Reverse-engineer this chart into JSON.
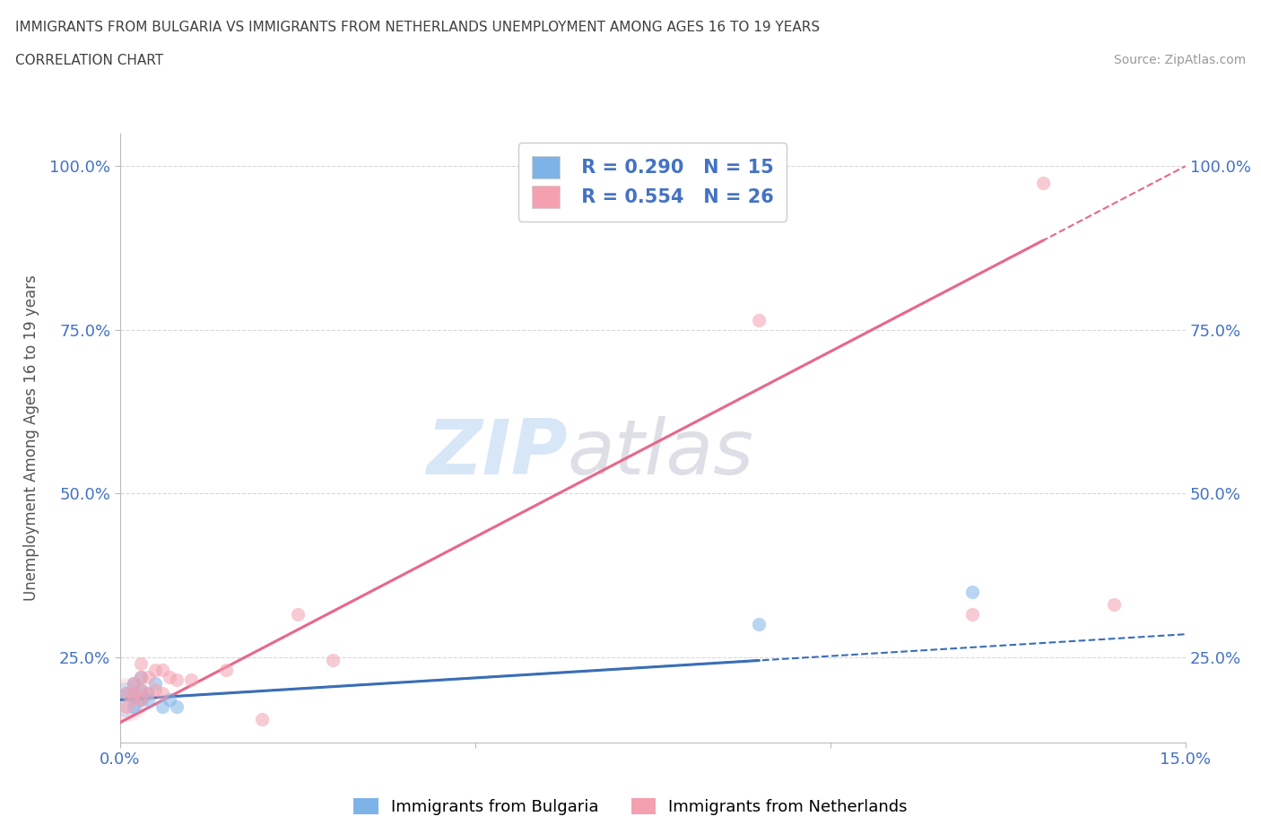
{
  "title_line1": "IMMIGRANTS FROM BULGARIA VS IMMIGRANTS FROM NETHERLANDS UNEMPLOYMENT AMONG AGES 16 TO 19 YEARS",
  "title_line2": "CORRELATION CHART",
  "source_text": "Source: ZipAtlas.com",
  "ylabel": "Unemployment Among Ages 16 to 19 years",
  "xlim": [
    0.0,
    0.15
  ],
  "ylim": [
    0.12,
    1.05
  ],
  "xticks": [
    0.0,
    0.05,
    0.1,
    0.15
  ],
  "xticklabels": [
    "0.0%",
    "",
    "",
    "15.0%"
  ],
  "yticks": [
    0.25,
    0.5,
    0.75,
    1.0
  ],
  "yticklabels": [
    "25.0%",
    "50.0%",
    "75.0%",
    "100.0%"
  ],
  "bulgaria_x": [
    0.001,
    0.002,
    0.002,
    0.002,
    0.003,
    0.003,
    0.003,
    0.004,
    0.004,
    0.005,
    0.006,
    0.007,
    0.008,
    0.09,
    0.12
  ],
  "bulgaria_y": [
    0.195,
    0.175,
    0.19,
    0.21,
    0.185,
    0.2,
    0.22,
    0.195,
    0.185,
    0.21,
    0.175,
    0.185,
    0.175,
    0.3,
    0.35
  ],
  "netherlands_x": [
    0.001,
    0.001,
    0.002,
    0.002,
    0.002,
    0.003,
    0.003,
    0.003,
    0.003,
    0.004,
    0.004,
    0.005,
    0.005,
    0.006,
    0.006,
    0.007,
    0.008,
    0.01,
    0.015,
    0.02,
    0.025,
    0.03,
    0.09,
    0.12,
    0.13,
    0.14
  ],
  "netherlands_y": [
    0.175,
    0.195,
    0.185,
    0.195,
    0.21,
    0.185,
    0.2,
    0.22,
    0.24,
    0.195,
    0.22,
    0.2,
    0.23,
    0.195,
    0.23,
    0.22,
    0.215,
    0.215,
    0.23,
    0.155,
    0.315,
    0.245,
    0.765,
    0.315,
    0.975,
    0.33
  ],
  "bulgaria_color": "#7eb3e8",
  "netherlands_color": "#f4a0b0",
  "bulgaria_line_color": "#3b6eb5",
  "netherlands_line_color": "#e8688a",
  "R_bulgaria": 0.29,
  "N_bulgaria": 15,
  "R_netherlands": 0.554,
  "N_netherlands": 26,
  "legend_label_bulgaria": "Immigrants from Bulgaria",
  "legend_label_netherlands": "Immigrants from Netherlands",
  "watermark_zip": "ZIP",
  "watermark_atlas": "atlas",
  "background_color": "#ffffff",
  "grid_color": "#d8d8d8",
  "title_color": "#404040",
  "axis_color": "#4472c4",
  "marker_size": 11,
  "marker_alpha": 0.55,
  "nlfit_x0": 0.0,
  "nlfit_y0": 0.15,
  "nlfit_x1": 0.15,
  "nlfit_y1": 1.0,
  "blfit_x0": 0.0,
  "blfit_y0": 0.185,
  "blfit_x1": 0.15,
  "blfit_y1": 0.285
}
